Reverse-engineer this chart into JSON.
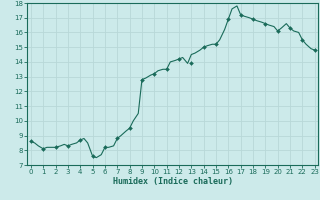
{
  "title": "",
  "xlabel": "Humidex (Indice chaleur)",
  "ylabel": "",
  "background_color": "#cceaea",
  "grid_color": "#b8d8d8",
  "line_color": "#1a6b5a",
  "marker_color": "#1a6b5a",
  "xlim": [
    -0.3,
    23.3
  ],
  "ylim": [
    7,
    18
  ],
  "yticks": [
    7,
    8,
    9,
    10,
    11,
    12,
    13,
    14,
    15,
    16,
    17,
    18
  ],
  "xticks": [
    0,
    1,
    2,
    3,
    4,
    5,
    6,
    7,
    8,
    9,
    10,
    11,
    12,
    13,
    14,
    15,
    16,
    17,
    18,
    19,
    20,
    21,
    22,
    23
  ],
  "x": [
    0,
    0.3,
    0.6,
    1.0,
    1.3,
    1.7,
    2.0,
    2.4,
    2.7,
    3.0,
    3.3,
    3.7,
    4.0,
    4.3,
    4.6,
    5.0,
    5.3,
    5.7,
    6.0,
    6.3,
    6.7,
    7.0,
    7.3,
    7.7,
    8.0,
    8.3,
    8.7,
    9.0,
    9.3,
    9.7,
    10.0,
    10.3,
    10.7,
    11.0,
    11.3,
    11.7,
    12.0,
    12.3,
    12.7,
    13.0,
    13.3,
    13.7,
    14.0,
    14.3,
    14.7,
    15.0,
    15.3,
    15.7,
    16.0,
    16.3,
    16.7,
    17.0,
    17.3,
    17.7,
    18.0,
    18.3,
    18.7,
    19.0,
    19.3,
    19.7,
    20.0,
    20.3,
    20.7,
    21.0,
    21.3,
    21.7,
    22.0,
    22.3,
    22.7,
    23.0
  ],
  "y": [
    8.6,
    8.5,
    8.3,
    8.1,
    8.2,
    8.2,
    8.2,
    8.3,
    8.4,
    8.3,
    8.4,
    8.5,
    8.7,
    8.8,
    8.5,
    7.6,
    7.5,
    7.7,
    8.2,
    8.2,
    8.3,
    8.8,
    9.0,
    9.3,
    9.5,
    10.0,
    10.5,
    12.8,
    12.9,
    13.1,
    13.2,
    13.4,
    13.5,
    13.5,
    14.0,
    14.1,
    14.2,
    14.3,
    13.9,
    14.5,
    14.6,
    14.8,
    15.0,
    15.1,
    15.2,
    15.2,
    15.5,
    16.2,
    16.9,
    17.6,
    17.8,
    17.2,
    17.1,
    17.0,
    16.9,
    16.8,
    16.7,
    16.6,
    16.5,
    16.4,
    16.1,
    16.3,
    16.6,
    16.3,
    16.1,
    16.0,
    15.5,
    15.2,
    14.9,
    14.8
  ],
  "marker_x": [
    0,
    1,
    2,
    3,
    4,
    5,
    6,
    7,
    8,
    9,
    10,
    11,
    12,
    13,
    14,
    15,
    16,
    17,
    18,
    19,
    20,
    21,
    22,
    23
  ],
  "marker_y": [
    8.6,
    8.1,
    8.2,
    8.3,
    8.7,
    7.6,
    8.2,
    8.8,
    9.5,
    12.8,
    13.2,
    13.5,
    14.2,
    13.9,
    15.0,
    15.2,
    16.9,
    17.2,
    16.9,
    16.6,
    16.1,
    16.3,
    15.5,
    14.8
  ],
  "xlabel_fontsize": 6.0,
  "tick_fontsize": 5.0
}
